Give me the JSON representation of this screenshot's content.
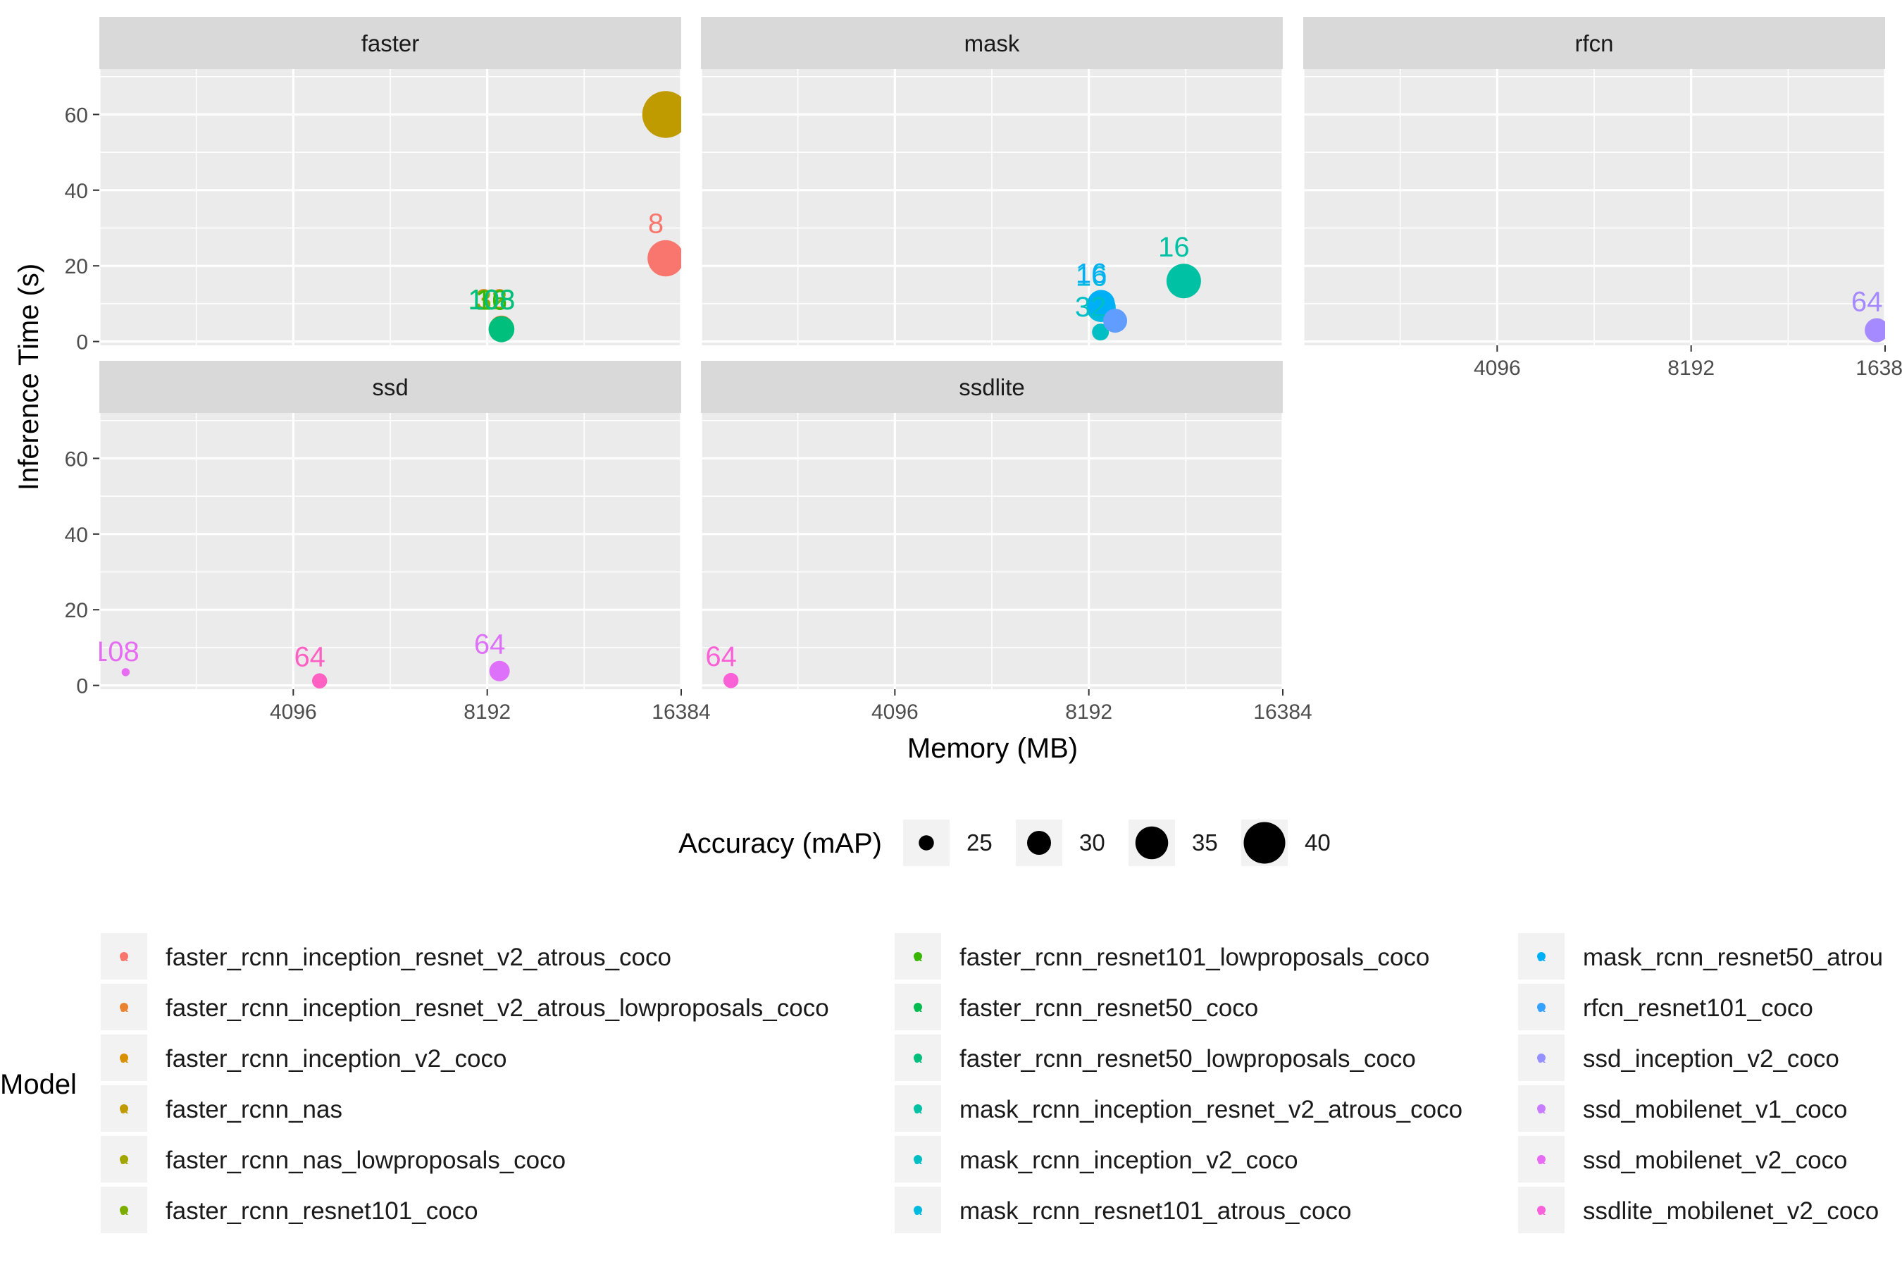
{
  "chart_data": {
    "type": "scatter",
    "title": "",
    "xlabel": "Memory (MB)",
    "ylabel": "Inference Time (s)",
    "x_scale": "log2",
    "xlim": [
      2048,
      16384
    ],
    "x_ticks": [
      4096,
      8192,
      16384
    ],
    "x_tick_labels": [
      "4096",
      "8192",
      "16384"
    ],
    "ylim": [
      -1,
      72
    ],
    "y_ticks": [
      0,
      20,
      40,
      60
    ],
    "y_tick_labels": [
      "0",
      "20",
      "40",
      "60"
    ],
    "grid": true,
    "facets": [
      "faster",
      "mask",
      "rfcn",
      "ssd",
      "ssdlite"
    ],
    "size_legend": {
      "title": "Accuracy (mAP)",
      "values": [
        25,
        30,
        35,
        40
      ],
      "labels": [
        "25",
        "30",
        "35",
        "40"
      ]
    },
    "color_legend": {
      "title": "Model",
      "letter": "a",
      "models": [
        {
          "name": "faster_rcnn_inception_resnet_v2_atrous_coco",
          "color": "#F8766D"
        },
        {
          "name": "faster_rcnn_inception_resnet_v2_atrous_lowproposals_coco",
          "color": "#EA8331"
        },
        {
          "name": "faster_rcnn_inception_v2_coco",
          "color": "#D89000"
        },
        {
          "name": "faster_rcnn_nas",
          "color": "#C09B00"
        },
        {
          "name": "faster_rcnn_nas_lowproposals_coco",
          "color": "#A3A500"
        },
        {
          "name": "faster_rcnn_resnet101_coco",
          "color": "#7CAE00"
        },
        {
          "name": "faster_rcnn_resnet101_lowproposals_coco",
          "color": "#39B600"
        },
        {
          "name": "faster_rcnn_resnet50_coco",
          "color": "#00BB4E"
        },
        {
          "name": "faster_rcnn_resnet50_lowproposals_coco",
          "color": "#00BF7D"
        },
        {
          "name": "mask_rcnn_inception_resnet_v2_atrous_coco",
          "color": "#00C1A3"
        },
        {
          "name": "mask_rcnn_inception_v2_coco",
          "color": "#00BFC4"
        },
        {
          "name": "mask_rcnn_resnet101_atrous_coco",
          "color": "#00BAE0"
        },
        {
          "name": "mask_rcnn_resnet50_atrou",
          "color": "#00B0F6"
        },
        {
          "name": "rfcn_resnet101_coco",
          "color": "#35A2FF"
        },
        {
          "name": "ssd_inception_v2_coco",
          "color": "#9590FF"
        },
        {
          "name": "ssd_mobilenet_v1_coco",
          "color": "#C77CFF"
        },
        {
          "name": "ssd_mobilenet_v2_coco",
          "color": "#E76BF3"
        },
        {
          "name": "ssdlite_mobilenet_v2_coco",
          "color": "#FA62DB"
        }
      ]
    },
    "points": [
      {
        "facet": "faster",
        "x": 15500,
        "y": 22,
        "map": 37,
        "color": "#F8766D",
        "label": "8"
      },
      {
        "facet": "faster",
        "x": 8620,
        "y": 3.7,
        "map": 30,
        "color": "#EA8331",
        "label": "32"
      },
      {
        "facet": "faster",
        "x": 8620,
        "y": 3.5,
        "map": 30,
        "color": "#7CAE00",
        "label": "32"
      },
      {
        "facet": "faster",
        "x": 8620,
        "y": 3.4,
        "map": 30,
        "color": "#39B600",
        "label": "16"
      },
      {
        "facet": "faster",
        "x": 8620,
        "y": 3.3,
        "map": 31,
        "color": "#00BB4E",
        "label": "108"
      },
      {
        "facet": "faster",
        "x": 8620,
        "y": 3.2,
        "map": 31,
        "color": "#00BF7D",
        "label": "108"
      },
      {
        "facet": "faster",
        "x": 15500,
        "y": 60,
        "map": 43,
        "color": "#C09B00",
        "label": ""
      },
      {
        "facet": "mask",
        "x": 11500,
        "y": 16,
        "map": 36,
        "color": "#00C1A3",
        "label": "16"
      },
      {
        "facet": "mask",
        "x": 8560,
        "y": 9,
        "map": 33,
        "color": "#00BAE0",
        "label": "16"
      },
      {
        "facet": "mask",
        "x": 8560,
        "y": 10,
        "map": 32,
        "color": "#00B0F6",
        "label": "16"
      },
      {
        "facet": "mask",
        "x": 8540,
        "y": 2.5,
        "map": 26,
        "color": "#00BFC4",
        "label": "32"
      },
      {
        "facet": "mask",
        "x": 9000,
        "y": 5.5,
        "map": 30,
        "color": "#619CFF",
        "label": ""
      },
      {
        "facet": "rfcn",
        "x": 15900,
        "y": 3,
        "map": 30,
        "color": "#A58AFF",
        "label": "64"
      },
      {
        "facet": "ssd",
        "x": 2250,
        "y": 3.5,
        "map": 21,
        "color": "#E76BF3",
        "label": "108"
      },
      {
        "facet": "ssd",
        "x": 4500,
        "y": 1.2,
        "map": 25,
        "color": "#FF61C3",
        "label": "64"
      },
      {
        "facet": "ssd",
        "x": 8560,
        "y": 3.8,
        "map": 28,
        "color": "#DE71F9",
        "label": "64"
      },
      {
        "facet": "ssdlite",
        "x": 2280,
        "y": 1.3,
        "map": 25,
        "color": "#FB61D7",
        "label": "64"
      }
    ]
  }
}
